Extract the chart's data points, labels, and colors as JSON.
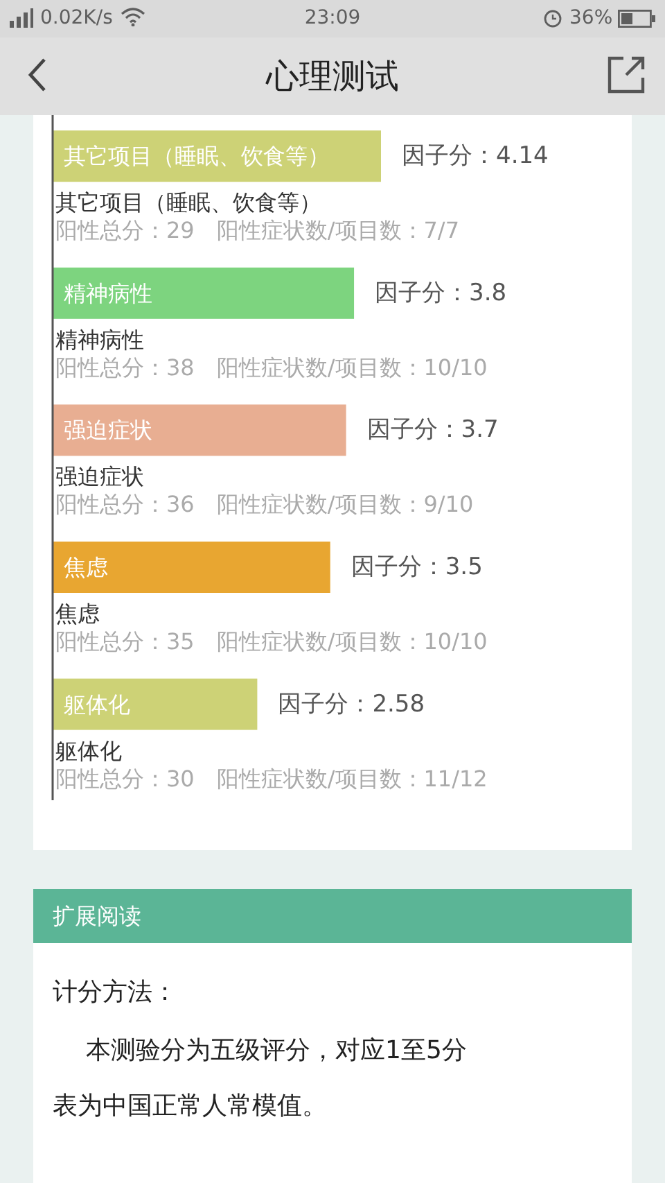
{
  "chart_data": {
    "type": "bar",
    "orientation": "horizontal",
    "title": "心理测试",
    "categories": [
      "其它项目（睡眠、饮食等）",
      "精神病性",
      "强迫症状",
      "焦虑",
      "躯体化"
    ],
    "values": [
      4.14,
      3.8,
      3.7,
      3.5,
      2.58
    ],
    "colors": [
      "#cdd276",
      "#7dd47f",
      "#e8ae92",
      "#e8a631",
      "#cdd276"
    ],
    "value_labels": [
      "因子分：4.14",
      "因子分：3.8",
      "因子分：3.7",
      "因子分：3.5",
      "因子分：2.58"
    ],
    "tick_labels": "y",
    "annotations": [
      "0.02K/s",
      "23:09",
      "36%",
      "阳性总分：29　阳性症状数/项目数：7/7",
      "阳性总分：38　阳性症状数/项目数：10/10",
      "阳性总分：36　阳性症状数/项目数：9/10",
      "阳性总分：35　阳性症状数/项目数：10/10",
      "阳性总分：30　阳性症状数/项目数：11/12",
      "扩展阅读",
      "计分方法：",
      "本测验分为五级评分，对应1至5分",
      "表为中国正常人常模值。"
    ]
  }
}
